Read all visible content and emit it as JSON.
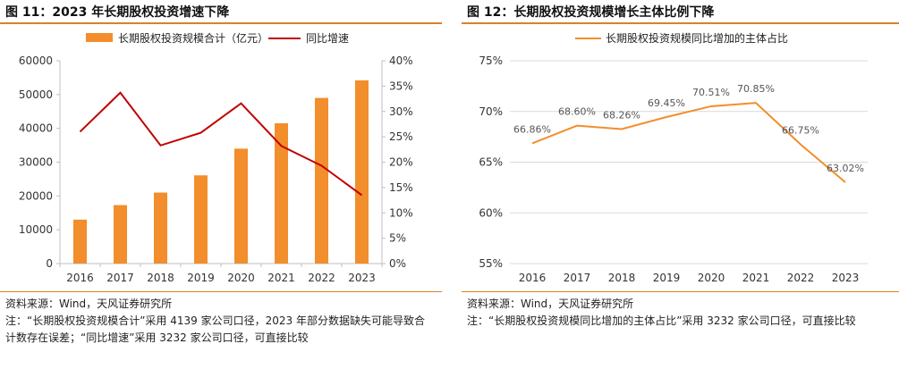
{
  "left": {
    "title": "图 11：2023 年长期股权投资增速下降",
    "source": "资料来源：Wind，天风证券研究所",
    "note": "注：“长期股权投资规模合计”采用 4139 家公司口径，2023 年部分数据缺失可能导致合计数存在误差；“同比增速”采用 3232 家公司口径，可直接比较"
  },
  "right": {
    "title": "图 12：长期股权投资规模增长主体比例下降",
    "source": "资料来源：Wind，天风证券研究所",
    "note": "注：“长期股权投资规模同比增加的主体占比”采用 3232 家公司口径，可直接比较"
  },
  "chart_data": [
    {
      "type": "bar",
      "categories": [
        "2016",
        "2017",
        "2018",
        "2019",
        "2020",
        "2021",
        "2022",
        "2023"
      ],
      "series": [
        {
          "name": "长期股权投资规模合计（亿元）",
          "type": "bar",
          "axis": "left",
          "color": "#f28e2b",
          "values": [
            13000,
            17300,
            21000,
            26100,
            34000,
            41500,
            49000,
            54200
          ]
        },
        {
          "name": "同比增速",
          "type": "line",
          "axis": "right",
          "color": "#c00000",
          "values": [
            0.26,
            0.337,
            0.233,
            0.258,
            0.316,
            0.232,
            0.193,
            0.135
          ]
        }
      ],
      "ylim": [
        0,
        60000
      ],
      "yticks": [
        "0",
        "10000",
        "20000",
        "30000",
        "40000",
        "50000",
        "60000"
      ],
      "y2lim": [
        0,
        0.4
      ],
      "y2ticks": [
        "0%",
        "5%",
        "10%",
        "15%",
        "20%",
        "25%",
        "30%",
        "35%",
        "40%"
      ],
      "legend": "top"
    },
    {
      "type": "line",
      "categories": [
        "2016",
        "2017",
        "2018",
        "2019",
        "2020",
        "2021",
        "2022",
        "2023"
      ],
      "series": [
        {
          "name": "长期股权投资规模同比增加的主体占比",
          "color": "#f28e2b",
          "values": [
            0.6686,
            0.686,
            0.6826,
            0.6945,
            0.7051,
            0.7085,
            0.6675,
            0.6302
          ],
          "labels": [
            "66.86%",
            "68.60%",
            "68.26%",
            "69.45%",
            "70.51%",
            "70.85%",
            "66.75%",
            "63.02%"
          ]
        }
      ],
      "ylim": [
        0.55,
        0.75
      ],
      "yticks": [
        "55%",
        "60%",
        "65%",
        "70%",
        "75%"
      ],
      "legend": "top"
    }
  ]
}
